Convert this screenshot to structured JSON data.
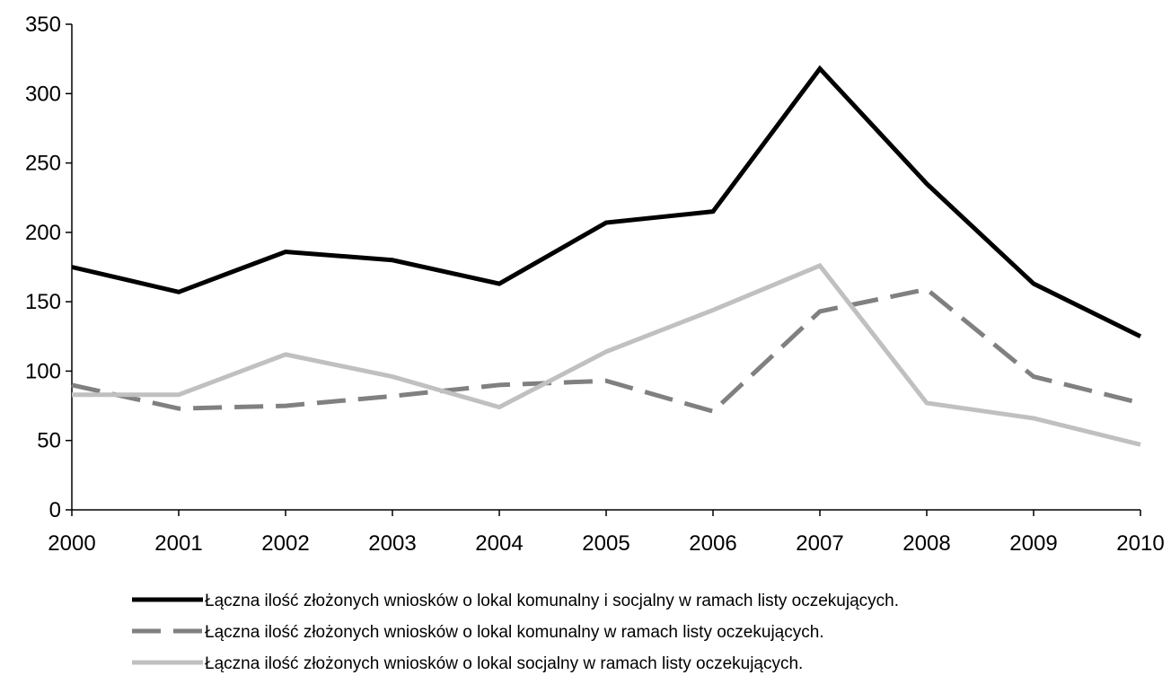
{
  "chart_data": {
    "type": "line",
    "title": "",
    "xlabel": "",
    "ylabel": "",
    "x": [
      "2000",
      "2001",
      "2002",
      "2003",
      "2004",
      "2005",
      "2006",
      "2007",
      "2008",
      "2009",
      "2010"
    ],
    "ylim": [
      0,
      350
    ],
    "yticks": [
      "0",
      "50",
      "100",
      "150",
      "200",
      "250",
      "300",
      "350"
    ],
    "grid": false,
    "legend_position": "bottom",
    "series": [
      {
        "name": "Łączna ilość złożonych wniosków o lokal komunalny i socjalny w ramach listy oczekujących.",
        "values": [
          175,
          157,
          186,
          180,
          163,
          207,
          215,
          318,
          235,
          163,
          125
        ],
        "color": "#000000",
        "style": "solid"
      },
      {
        "name": "Łączna ilość złożonych wniosków o lokal komunalny w ramach listy oczekujących.",
        "values": [
          90,
          73,
          75,
          82,
          90,
          93,
          71,
          143,
          159,
          96,
          77
        ],
        "color": "#808080",
        "style": "dashed"
      },
      {
        "name": "Łączna ilość złożonych wniosków o lokal socjalny w ramach listy oczekujących.",
        "values": [
          83,
          83,
          112,
          96,
          74,
          114,
          144,
          176,
          77,
          66,
          47
        ],
        "color": "#c0c0c0",
        "style": "solid"
      }
    ]
  }
}
